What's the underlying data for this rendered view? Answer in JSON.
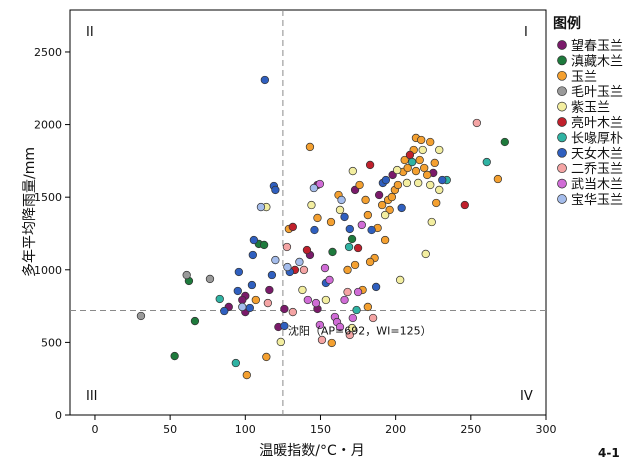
{
  "chart_data": {
    "type": "scatter",
    "title": "",
    "xlabel": "温暖指数/°C・月",
    "ylabel": "多年平均降雨量/mm",
    "xlim": [
      -16.6,
      300
    ],
    "ylim": [
      0,
      2789
    ],
    "xticks": [
      0,
      50,
      100,
      150,
      200,
      250,
      300
    ],
    "yticks": [
      0,
      500,
      1000,
      1500,
      2000,
      2500
    ],
    "grid": false,
    "legend_title": "图例",
    "legend_placement": "right",
    "reference_lines": {
      "x": 125,
      "y": 720
    },
    "quadrants": {
      "top_left": "II",
      "top_right": "I",
      "bottom_left": "III",
      "bottom_right": "IV"
    },
    "annotation": {
      "text": "沈阳（AP=692，WI=125）",
      "x": 125,
      "y": 692
    },
    "series": [
      {
        "name": "望春玉兰",
        "color": "#7a1a6a",
        "points": [
          [
            89,
            744
          ],
          [
            100,
            820
          ],
          [
            100,
            709
          ],
          [
            116,
            861
          ],
          [
            122,
            606
          ],
          [
            126,
            730
          ],
          [
            143,
            1102
          ],
          [
            148,
            1584
          ],
          [
            148,
            730
          ],
          [
            173,
            1550
          ],
          [
            189,
            1515
          ],
          [
            198,
            1653
          ],
          [
            225,
            1667
          ],
          [
            98,
            792
          ]
        ]
      },
      {
        "name": "滇藏木兰",
        "color": "#1e7a3c",
        "points": [
          [
            53,
            406
          ],
          [
            62.5,
            923
          ],
          [
            66.5,
            647
          ],
          [
            109,
            1178
          ],
          [
            112.5,
            1171
          ],
          [
            158,
            1123
          ],
          [
            171,
            1212
          ],
          [
            272.6,
            1880
          ]
        ]
      },
      {
        "name": "玉兰",
        "color": "#f4a030",
        "points": [
          [
            101,
            275
          ],
          [
            114,
            400
          ],
          [
            129,
            1281
          ],
          [
            143,
            1846
          ],
          [
            148,
            1357
          ],
          [
            157,
            1329
          ],
          [
            162,
            1515
          ],
          [
            168,
            999
          ],
          [
            176,
            1584
          ],
          [
            180,
            1481
          ],
          [
            181.5,
            1377
          ],
          [
            186,
            1081
          ],
          [
            188,
            1288
          ],
          [
            191,
            1446
          ],
          [
            195,
            1481
          ],
          [
            196,
            1412
          ],
          [
            197.5,
            1501
          ],
          [
            199.5,
            1550
          ],
          [
            201.5,
            1584
          ],
          [
            205,
            1674
          ],
          [
            206,
            1756
          ],
          [
            208,
            1701
          ],
          [
            212,
            1825
          ],
          [
            213.5,
            1680
          ],
          [
            213.5,
            1908
          ],
          [
            216,
            1756
          ],
          [
            217,
            1894
          ],
          [
            219,
            1701
          ],
          [
            221,
            1653
          ],
          [
            223,
            1880
          ],
          [
            226,
            1736
          ],
          [
            227,
            1460
          ],
          [
            268,
            1625
          ],
          [
            157.5,
            496
          ],
          [
            178,
            861
          ],
          [
            181.5,
            744
          ],
          [
            107,
            792
          ],
          [
            193,
            1205
          ],
          [
            183,
            1054
          ],
          [
            173,
            1033
          ]
        ]
      },
      {
        "name": "毛叶玉兰",
        "color": "#9a9a9a",
        "points": [
          [
            30.6,
            682
          ],
          [
            61,
            964
          ],
          [
            76.5,
            937
          ]
        ]
      },
      {
        "name": "紫玉兰",
        "color": "#f3eea0",
        "points": [
          [
            114,
            1432
          ],
          [
            123.6,
            503
          ],
          [
            138,
            861
          ],
          [
            144,
            1446
          ],
          [
            163,
            1412
          ],
          [
            171.5,
            1680
          ],
          [
            193,
            1377
          ],
          [
            201,
            1687
          ],
          [
            203,
            930
          ],
          [
            207.5,
            1598
          ],
          [
            215,
            1598
          ],
          [
            218,
            1825
          ],
          [
            220,
            1109
          ],
          [
            223,
            1584
          ],
          [
            224,
            1329
          ],
          [
            229,
            1550
          ],
          [
            229,
            1825
          ],
          [
            171,
            599
          ],
          [
            153.6,
            792
          ]
        ]
      },
      {
        "name": "亮叶木兰",
        "color": "#c0202c",
        "points": [
          [
            131.6,
            1295
          ],
          [
            141,
            1136
          ],
          [
            175,
            1150
          ],
          [
            183,
            1722
          ],
          [
            209.5,
            1791
          ],
          [
            246,
            1446
          ],
          [
            133,
            999
          ]
        ]
      },
      {
        "name": "长喙厚朴",
        "color": "#2fb3a3",
        "points": [
          [
            83,
            799
          ],
          [
            93.7,
            358
          ],
          [
            169,
            1157
          ],
          [
            174,
            723
          ],
          [
            211,
            1742
          ],
          [
            234,
            1618
          ],
          [
            260.6,
            1742
          ]
        ]
      },
      {
        "name": "天女木兰",
        "color": "#2f5fbf",
        "points": [
          [
            86,
            716
          ],
          [
            95,
            854
          ],
          [
            95.7,
            985
          ],
          [
            103,
            737
          ],
          [
            105,
            1102
          ],
          [
            105.7,
            1205
          ],
          [
            104.4,
            895
          ],
          [
            113,
            2307
          ],
          [
            117.7,
            964
          ],
          [
            119,
            1577
          ],
          [
            120,
            1550
          ],
          [
            126,
            613
          ],
          [
            129.6,
            985
          ],
          [
            146,
            1274
          ],
          [
            153.6,
            909
          ],
          [
            166,
            1364
          ],
          [
            169.5,
            1281
          ],
          [
            184,
            1274
          ],
          [
            187,
            882
          ],
          [
            191.5,
            1598
          ],
          [
            193.5,
            1618
          ],
          [
            204,
            1426
          ],
          [
            231,
            1618
          ]
        ]
      },
      {
        "name": "二乔玉兰",
        "color": "#f4a4a4",
        "points": [
          [
            115,
            771
          ],
          [
            127.7,
            1157
          ],
          [
            131.6,
            709
          ],
          [
            139,
            999
          ],
          [
            151,
            517
          ],
          [
            168,
            847
          ],
          [
            169.5,
            551
          ],
          [
            254,
            2011
          ],
          [
            185,
            668
          ]
        ]
      },
      {
        "name": "武当木兰",
        "color": "#d06cd6",
        "points": [
          [
            147,
            771
          ],
          [
            149.6,
            620
          ],
          [
            149.6,
            1591
          ],
          [
            153,
            1012
          ],
          [
            156,
            930
          ],
          [
            159.6,
            675
          ],
          [
            161,
            640
          ],
          [
            163,
            606
          ],
          [
            166,
            792
          ],
          [
            175,
            847
          ],
          [
            177.5,
            1309
          ],
          [
            171.5,
            668
          ],
          [
            141.6,
            792
          ]
        ]
      },
      {
        "name": "宝华玉兰",
        "color": "#a4bceb",
        "points": [
          [
            98,
            744
          ],
          [
            110.4,
            1432
          ],
          [
            120,
            1067
          ],
          [
            128,
            1019
          ],
          [
            145.6,
            1563
          ],
          [
            164,
            1481
          ],
          [
            136,
            1054
          ]
        ]
      }
    ]
  },
  "figure_number": "4-1"
}
